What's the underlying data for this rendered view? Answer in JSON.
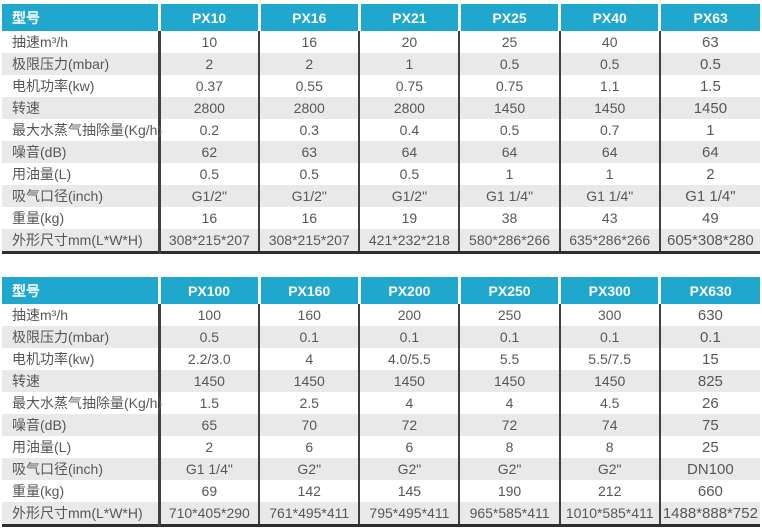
{
  "colors": {
    "header_bg": "#1fa7ce",
    "header_text": "#ffffff",
    "row_bg": "#ffffff",
    "row_alt_bg": "#e9e9e9",
    "column_divider": "#3f3f3f",
    "table_bottom_border": "#2e2e2e",
    "body_text": "#55575a",
    "page_bg": "#ffffff"
  },
  "chart_data": [
    {
      "type": "table",
      "name": "px-small-models-spec-table",
      "columns": [
        "型号",
        "PX10",
        "PX16",
        "PX21",
        "PX25",
        "PX40",
        "PX63"
      ],
      "rows": [
        {
          "label": "抽速m³/h",
          "values": [
            "10",
            "16",
            "20",
            "25",
            "40",
            "63"
          ]
        },
        {
          "label": "极限压力(mbar)",
          "values": [
            "2",
            "2",
            "1",
            "0.5",
            "0.5",
            "0.5"
          ]
        },
        {
          "label": "电机功率(kw)",
          "values": [
            "0.37",
            "0.55",
            "0.75",
            "0.75",
            "1.1",
            "1.5"
          ]
        },
        {
          "label": "转速",
          "values": [
            "2800",
            "2800",
            "2800",
            "1450",
            "1450",
            "1450"
          ]
        },
        {
          "label": "最大水蒸气抽除量(Kg/h)",
          "values": [
            "0.2",
            "0.3",
            "0.4",
            "0.5",
            "0.7",
            "1"
          ]
        },
        {
          "label": "噪音(dB)",
          "values": [
            "62",
            "63",
            "64",
            "64",
            "64",
            "64"
          ]
        },
        {
          "label": "用油量(L)",
          "values": [
            "0.5",
            "0.5",
            "0.5",
            "1",
            "1",
            "2"
          ]
        },
        {
          "label": "吸气口径(inch)",
          "values": [
            "G1/2\"",
            "G1/2\"",
            "G1/2\"",
            "G1 1/4\"",
            "G1 1/4\"",
            "G1 1/4\""
          ]
        },
        {
          "label": "重量(kg)",
          "values": [
            "16",
            "16",
            "19",
            "38",
            "43",
            "49"
          ]
        },
        {
          "label": "外形尺寸mm(L*W*H)",
          "values": [
            "308*215*207",
            "308*215*207",
            "421*232*218",
            "580*286*266",
            "635*286*266",
            "605*308*280"
          ]
        }
      ]
    },
    {
      "type": "table",
      "name": "px-large-models-spec-table",
      "columns": [
        "型号",
        "PX100",
        "PX160",
        "PX200",
        "PX250",
        "PX300",
        "PX630"
      ],
      "rows": [
        {
          "label": "抽速m³/h",
          "values": [
            "100",
            "160",
            "200",
            "250",
            "300",
            "630"
          ]
        },
        {
          "label": "极限压力(mbar)",
          "values": [
            "0.5",
            "0.1",
            "0.1",
            "0.1",
            "0.1",
            "0.1"
          ]
        },
        {
          "label": "电机功率(kw)",
          "values": [
            "2.2/3.0",
            "4",
            "4.0/5.5",
            "5.5",
            "5.5/7.5",
            "15"
          ]
        },
        {
          "label": "转速",
          "values": [
            "1450",
            "1450",
            "1450",
            "1450",
            "1450",
            "825"
          ]
        },
        {
          "label": "最大水蒸气抽除量(Kg/h)",
          "values": [
            "1.5",
            "2.5",
            "4",
            "4",
            "4.5",
            "26"
          ]
        },
        {
          "label": "噪音(dB)",
          "values": [
            "65",
            "70",
            "72",
            "72",
            "74",
            "75"
          ]
        },
        {
          "label": "用油量(L)",
          "values": [
            "2",
            "6",
            "6",
            "8",
            "8",
            "25"
          ]
        },
        {
          "label": "吸气口径(inch)",
          "values": [
            "G1 1/4\"",
            "G2\"",
            "G2\"",
            "G2\"",
            "G2\"",
            "DN100"
          ]
        },
        {
          "label": "重量(kg)",
          "values": [
            "69",
            "142",
            "145",
            "190",
            "212",
            "660"
          ]
        },
        {
          "label": "外形尺寸mm(L*W*H)",
          "values": [
            "710*405*290",
            "761*495*411",
            "795*495*411",
            "965*585*411",
            "1010*585*411",
            "1488*888*752"
          ]
        }
      ]
    }
  ]
}
